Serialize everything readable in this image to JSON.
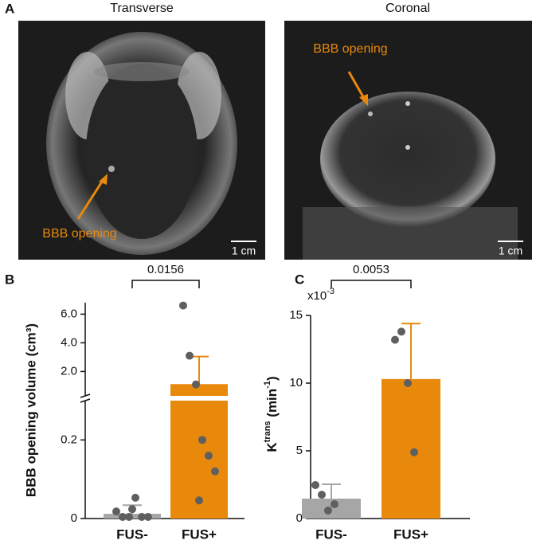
{
  "panel_a": {
    "label": "A",
    "images": [
      {
        "title": "Transverse",
        "annotation": "BBB opening",
        "scale_bar": "1 cm"
      },
      {
        "title": "Coronal",
        "annotation": "BBB opening",
        "scale_bar": "1 cm"
      }
    ]
  },
  "chart_data": [
    {
      "type": "broken-bar",
      "panel_label": "B",
      "ylabel": "BBB opening volume (cm³)",
      "categories": [
        "FUS-",
        "FUS+"
      ],
      "colors": [
        "#a6a6a6",
        "#e8890c"
      ],
      "point_color": "#5f5f5f",
      "values": [
        0.012,
        1.12
      ],
      "errors": [
        0.022,
        1.92
      ],
      "points": [
        [
          0.018,
          0.004,
          0.004,
          0.053,
          0.004,
          0.004,
          0.024
        ],
        [
          6.6,
          3.1,
          1.1,
          0.2,
          0.16,
          0.12,
          0.046
        ]
      ],
      "segments": [
        {
          "ylim": [
            0,
            0.3
          ],
          "yticks": [
            0,
            0.2
          ]
        },
        {
          "ylim": [
            0.3,
            6.8
          ],
          "yticks": [
            {
              "value": 2,
              "label": "2.0"
            },
            {
              "value": 4,
              "label": "4.0"
            },
            {
              "value": 6,
              "label": "6.0"
            }
          ]
        }
      ],
      "significance": "0.0156"
    },
    {
      "type": "bar",
      "panel_label": "C",
      "ylabel": {
        "base": "K",
        "sup": "trans",
        "unit": " (min",
        "unit_sup": "-1",
        "close": ")"
      },
      "axis_multiplier": {
        "base": "x10",
        "sup": "-3"
      },
      "categories": [
        "FUS-",
        "FUS+"
      ],
      "colors": [
        "#a6a6a6",
        "#e8890c"
      ],
      "point_color": "#5f5f5f",
      "values": [
        1.47,
        10.3
      ],
      "errors": [
        1.06,
        4.1
      ],
      "points": [
        [
          2.47,
          1.76,
          0.59,
          1.06
        ],
        [
          13.2,
          13.8,
          10.0,
          4.9
        ]
      ],
      "ylim": [
        0,
        15
      ],
      "yticks": [
        0,
        5,
        10,
        15
      ],
      "significance": "0.0053"
    }
  ]
}
